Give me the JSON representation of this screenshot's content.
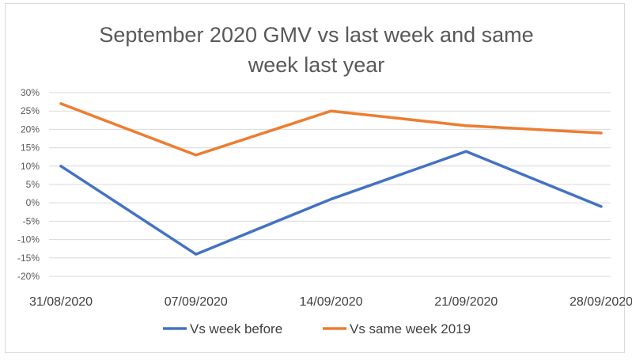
{
  "chart_data": {
    "type": "line",
    "title_lines": [
      "September 2020 GMV vs last week and same",
      "week last year"
    ],
    "categories": [
      "31/08/2020",
      "07/09/2020",
      "14/09/2020",
      "21/09/2020",
      "28/09/2020"
    ],
    "y_ticks": [
      "30%",
      "25%",
      "20%",
      "15%",
      "10%",
      "5%",
      "0%",
      "-5%",
      "-10%",
      "-15%",
      "-20%"
    ],
    "ylim": [
      -20,
      30
    ],
    "y_unit": "%",
    "grid": true,
    "legend_position": "bottom",
    "series": [
      {
        "name": "Vs week before",
        "color": "#4472C4",
        "values": [
          10,
          -14,
          1,
          14,
          -1
        ]
      },
      {
        "name": "Vs same week 2019",
        "color": "#ED7D31",
        "values": [
          27,
          13,
          25,
          21,
          19
        ]
      }
    ]
  }
}
